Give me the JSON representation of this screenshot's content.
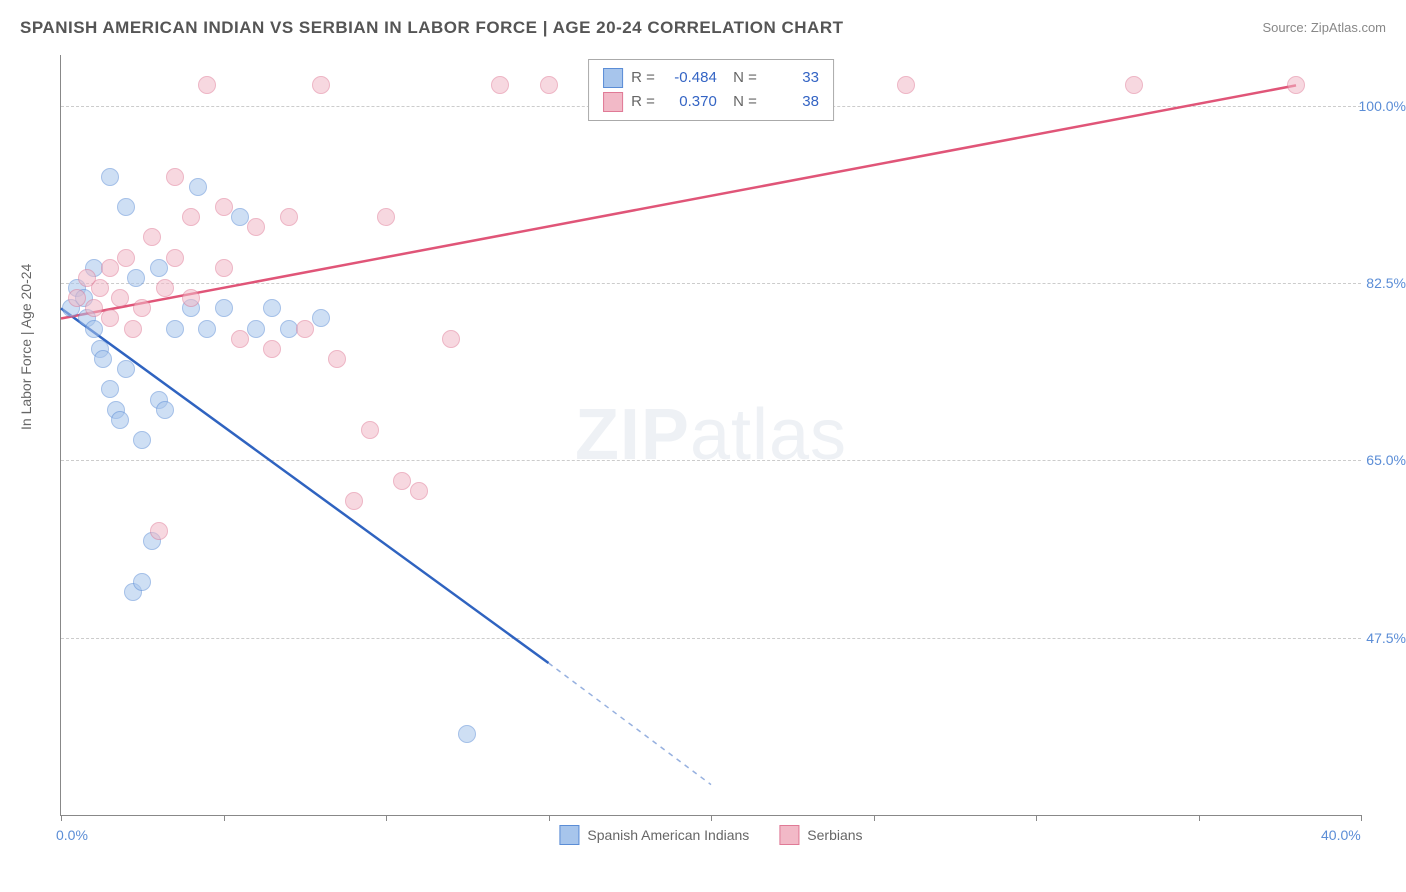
{
  "title": "SPANISH AMERICAN INDIAN VS SERBIAN IN LABOR FORCE | AGE 20-24 CORRELATION CHART",
  "source": "Source: ZipAtlas.com",
  "ylabel_text": "In Labor Force | Age 20-24",
  "watermark_zip": "ZIP",
  "watermark_atlas": "atlas",
  "chart": {
    "type": "scatter",
    "background_color": "#ffffff",
    "grid_color": "#cccccc",
    "axis_color": "#888888",
    "xlim": [
      0,
      40
    ],
    "ylim": [
      30,
      105
    ],
    "xticks": [
      0,
      5,
      10,
      15,
      20,
      25,
      30,
      35,
      40
    ],
    "xtick_labels": {
      "0": "0.0%",
      "40": "40.0%"
    },
    "yticks": [
      47.5,
      65.0,
      82.5,
      100.0
    ],
    "ytick_labels": [
      "47.5%",
      "65.0%",
      "82.5%",
      "100.0%"
    ],
    "marker_radius": 8,
    "marker_opacity": 0.55,
    "series": [
      {
        "name": "Spanish American Indians",
        "color_fill": "#a7c5ec",
        "color_stroke": "#5b8dd6",
        "line_color": "#2f63c0",
        "R": "-0.484",
        "N": "33",
        "trend": {
          "x1": 0,
          "y1": 80,
          "x2": 15,
          "y2": 45,
          "dash_x2": 20,
          "dash_y2": 33
        },
        "points": [
          [
            0.3,
            80
          ],
          [
            0.5,
            82
          ],
          [
            0.7,
            81
          ],
          [
            0.8,
            79
          ],
          [
            1.0,
            84
          ],
          [
            1.0,
            78
          ],
          [
            1.2,
            76
          ],
          [
            1.3,
            75
          ],
          [
            1.5,
            93
          ],
          [
            1.5,
            72
          ],
          [
            1.7,
            70
          ],
          [
            1.8,
            69
          ],
          [
            2.0,
            90
          ],
          [
            2.0,
            74
          ],
          [
            2.2,
            52
          ],
          [
            2.3,
            83
          ],
          [
            2.5,
            67
          ],
          [
            2.5,
            53
          ],
          [
            2.8,
            57
          ],
          [
            3.0,
            71
          ],
          [
            3.2,
            70
          ],
          [
            3.5,
            78
          ],
          [
            4.0,
            80
          ],
          [
            4.2,
            92
          ],
          [
            4.5,
            78
          ],
          [
            5.0,
            80
          ],
          [
            5.5,
            89
          ],
          [
            6.0,
            78
          ],
          [
            6.5,
            80
          ],
          [
            7.0,
            78
          ],
          [
            8.0,
            79
          ],
          [
            12.5,
            38
          ],
          [
            3.0,
            84
          ]
        ]
      },
      {
        "name": "Serbians",
        "color_fill": "#f2b9c7",
        "color_stroke": "#e07a96",
        "line_color": "#e05578",
        "R": "0.370",
        "N": "38",
        "trend": {
          "x1": 0,
          "y1": 79,
          "x2": 38,
          "y2": 102
        },
        "points": [
          [
            0.5,
            81
          ],
          [
            0.8,
            83
          ],
          [
            1.0,
            80
          ],
          [
            1.2,
            82
          ],
          [
            1.5,
            84
          ],
          [
            1.5,
            79
          ],
          [
            1.8,
            81
          ],
          [
            2.0,
            85
          ],
          [
            2.2,
            78
          ],
          [
            2.5,
            80
          ],
          [
            2.8,
            87
          ],
          [
            3.0,
            58
          ],
          [
            3.2,
            82
          ],
          [
            3.5,
            93
          ],
          [
            3.5,
            85
          ],
          [
            4.0,
            89
          ],
          [
            4.0,
            81
          ],
          [
            4.5,
            102
          ],
          [
            5.0,
            90
          ],
          [
            5.0,
            84
          ],
          [
            5.5,
            77
          ],
          [
            6.0,
            88
          ],
          [
            6.5,
            76
          ],
          [
            7.0,
            89
          ],
          [
            7.5,
            78
          ],
          [
            8.0,
            102
          ],
          [
            8.5,
            75
          ],
          [
            9.0,
            61
          ],
          [
            9.5,
            68
          ],
          [
            10.0,
            89
          ],
          [
            10.5,
            63
          ],
          [
            11.0,
            62
          ],
          [
            12.0,
            77
          ],
          [
            13.5,
            102
          ],
          [
            15.0,
            102
          ],
          [
            26.0,
            102
          ],
          [
            33.0,
            102
          ],
          [
            38.0,
            102
          ]
        ]
      }
    ]
  },
  "legend": {
    "item1": "Spanish American Indians",
    "item2": "Serbians"
  }
}
